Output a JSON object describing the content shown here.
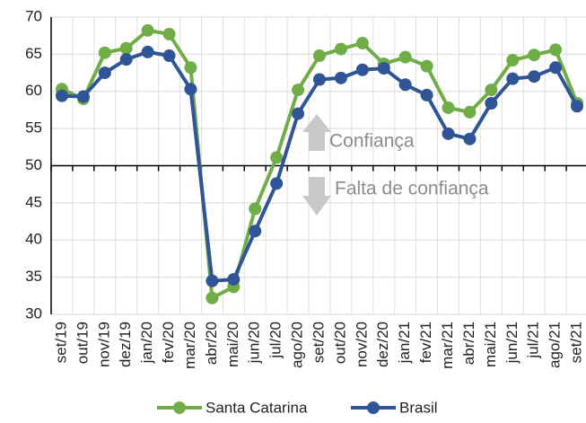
{
  "chart_data": {
    "type": "line",
    "categories": [
      "set/19",
      "out/19",
      "nov/19",
      "dez/19",
      "jan/20",
      "fev/20",
      "mar/20",
      "abr/20",
      "mai/20",
      "jun/20",
      "jul/20",
      "ago/20",
      "set/20",
      "out/20",
      "nov/20",
      "dez/20",
      "jan/21",
      "fev/21",
      "mar/21",
      "abr/21",
      "mai/21",
      "jun/21",
      "jul/21",
      "ago/21",
      "set/21"
    ],
    "series": [
      {
        "name": "Santa Catarina",
        "color": "#70ad47",
        "values": [
          60.3,
          59.0,
          65.2,
          65.8,
          68.2,
          67.7,
          63.2,
          32.2,
          33.7,
          44.2,
          51.1,
          60.2,
          64.8,
          65.7,
          66.5,
          63.7,
          64.6,
          63.4,
          57.8,
          57.2,
          60.2,
          64.2,
          64.9,
          65.6,
          58.4
        ]
      },
      {
        "name": "Brasil",
        "color": "#2f5597",
        "values": [
          59.4,
          59.3,
          62.5,
          64.3,
          65.3,
          64.8,
          60.3,
          34.5,
          34.7,
          41.2,
          47.6,
          57.0,
          61.6,
          61.8,
          62.9,
          63.1,
          60.9,
          59.5,
          54.3,
          53.6,
          58.4,
          61.7,
          62.0,
          63.2,
          58.0
        ]
      }
    ],
    "ylim": [
      30,
      70
    ],
    "yticks": [
      30,
      35,
      40,
      45,
      50,
      55,
      60,
      65,
      70
    ],
    "x_axis_crosses": 50,
    "grid": true,
    "legend": "bottom",
    "annotations": [
      "Confiança",
      "Falta de confiança"
    ]
  }
}
